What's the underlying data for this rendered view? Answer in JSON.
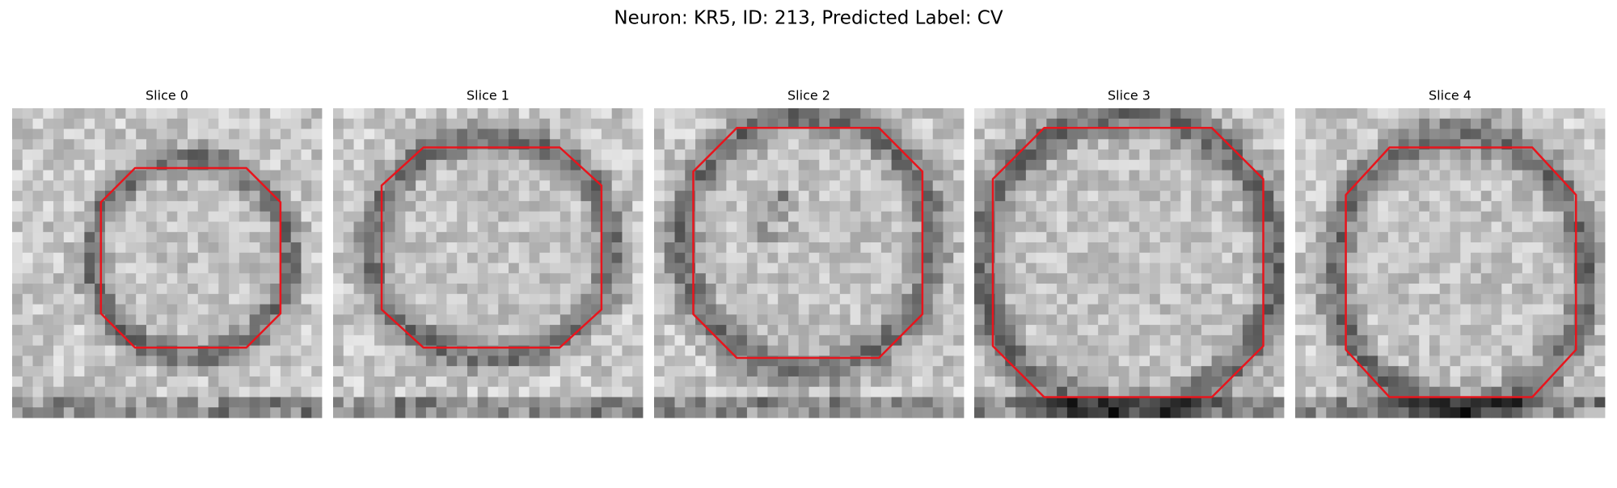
{
  "title": "Neuron: KR5, ID: 213, Predicted Label: CV",
  "panels": [
    {
      "title": "Slice 0"
    },
    {
      "title": "Slice 1"
    },
    {
      "title": "Slice 2"
    },
    {
      "title": "Slice 3"
    },
    {
      "title": "Slice 4"
    }
  ]
}
